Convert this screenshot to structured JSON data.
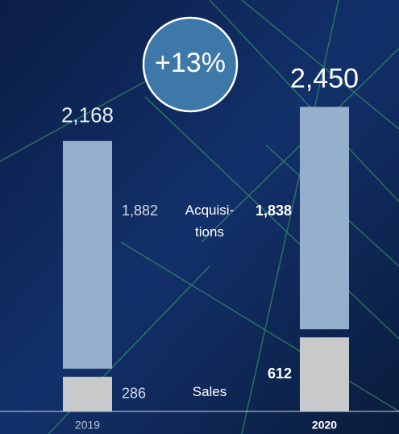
{
  "chart_data": {
    "type": "stacked_bar",
    "categories": [
      "2019",
      "2020"
    ],
    "series": [
      {
        "name": "Sales",
        "color": "#c8c9cb",
        "values": [
          286,
          612
        ]
      },
      {
        "name": "Acquisi- tions",
        "color": "#94b0cc",
        "values": [
          1882,
          1838
        ],
        "value_labels": [
          "1,882",
          "1,838"
        ]
      }
    ],
    "totals": [
      2168,
      2450
    ],
    "total_labels": [
      "2,168",
      "2,450"
    ],
    "annotation": "+13%"
  }
}
